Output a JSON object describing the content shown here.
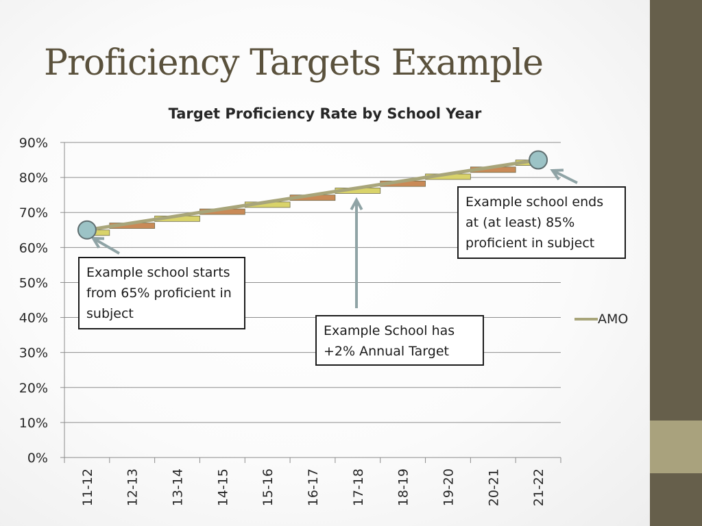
{
  "slide": {
    "title": "Proficiency Targets Example",
    "colors": {
      "sidebar": "#665f4b",
      "sidebar_accent": "#a9a27d",
      "title": "#5a513c"
    }
  },
  "callouts": {
    "start": "Example school starts from 65% proficient in subject",
    "annual": "Example School has +2% Annual Target",
    "end": "Example school ends at (at least) 85% proficient in subject"
  },
  "chart_data": {
    "type": "line",
    "title": "Target Proficiency Rate by School Year",
    "categories": [
      "11-12",
      "12-13",
      "13-14",
      "14-15",
      "15-16",
      "16-17",
      "17-18",
      "18-19",
      "19-20",
      "20-21",
      "21-22"
    ],
    "series": [
      {
        "name": "AMO",
        "values": [
          65,
          67,
          69,
          71,
          73,
          75,
          77,
          79,
          81,
          83,
          85
        ],
        "color": "#a8a57a"
      }
    ],
    "y_ticks": [
      "0%",
      "10%",
      "20%",
      "30%",
      "40%",
      "50%",
      "60%",
      "70%",
      "80%",
      "90%"
    ],
    "ylim": [
      0,
      90
    ],
    "grid": true,
    "legend_position": "right",
    "step_colors": [
      "#d9d36a",
      "#c98a57"
    ],
    "endpoint_color": "#9cc3c6",
    "arrow_color": "#8fa3a5"
  }
}
